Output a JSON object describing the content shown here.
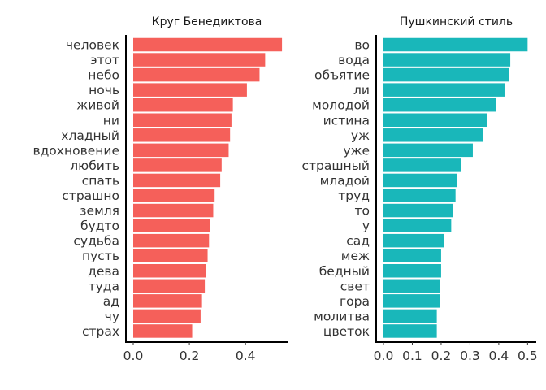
{
  "chart_data": [
    {
      "type": "bar",
      "orientation": "horizontal",
      "title": "Круг Бенедиктова",
      "xlabel": "",
      "ylabel": "",
      "color": "#F5605A",
      "xlim": [
        0,
        0.55
      ],
      "xticks": [
        "0.0",
        "0.2",
        "0.4"
      ],
      "xtick_values": [
        0,
        0.2,
        0.4
      ],
      "grid": false,
      "legend": "none",
      "categories": [
        "человек",
        "этот",
        "небо",
        "ночь",
        "живой",
        "ни",
        "хладный",
        "вдохновение",
        "любить",
        "спать",
        "страшно",
        "земля",
        "будто",
        "судьба",
        "пусть",
        "дева",
        "туда",
        "ад",
        "чу",
        "страх"
      ],
      "values": [
        0.53,
        0.47,
        0.45,
        0.405,
        0.355,
        0.35,
        0.345,
        0.34,
        0.315,
        0.31,
        0.29,
        0.285,
        0.275,
        0.27,
        0.265,
        0.26,
        0.255,
        0.245,
        0.24,
        0.21
      ]
    },
    {
      "type": "bar",
      "orientation": "horizontal",
      "title": "Пушкинский стиль",
      "xlabel": "",
      "ylabel": "",
      "color": "#19B7BA",
      "xlim": [
        0,
        0.53
      ],
      "xticks": [
        "0.0",
        "0.1",
        "0.2",
        "0.3",
        "0.4",
        "0.5"
      ],
      "xtick_values": [
        0,
        0.1,
        0.2,
        0.3,
        0.4,
        0.5
      ],
      "grid": false,
      "legend": "none",
      "categories": [
        "во",
        "вода",
        "объятие",
        "ли",
        "молодой",
        "истина",
        "уж",
        "уже",
        "страшный",
        "младой",
        "труд",
        "то",
        "у",
        "сад",
        "меж",
        "бедный",
        "свет",
        "гора",
        "молитва",
        "цветок"
      ],
      "values": [
        0.5,
        0.44,
        0.435,
        0.42,
        0.39,
        0.36,
        0.345,
        0.31,
        0.27,
        0.255,
        0.25,
        0.24,
        0.235,
        0.21,
        0.2,
        0.2,
        0.195,
        0.195,
        0.185,
        0.185
      ]
    }
  ]
}
